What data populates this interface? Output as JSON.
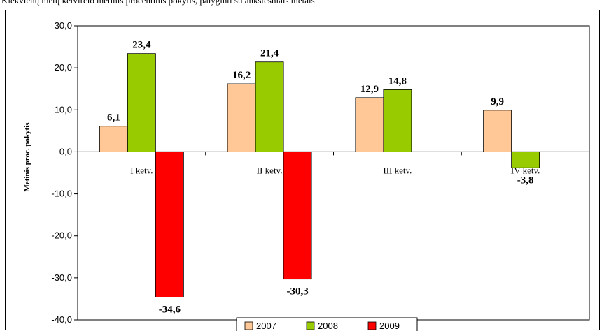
{
  "page": {
    "top_caption": "Kiekvienų metų ketvirčio metinis procentinis pokytis, palyginti su ankstesniais metais"
  },
  "chart_data": {
    "type": "bar",
    "categories": [
      "I ketv.",
      "II ketv.",
      "III ketv.",
      "IV ketv."
    ],
    "series": [
      {
        "name": "2007",
        "values": [
          6.1,
          16.2,
          12.9,
          9.9
        ],
        "labels": [
          "6,1",
          "16,2",
          "12,9",
          "9,9"
        ],
        "color": "#FFC896"
      },
      {
        "name": "2008",
        "values": [
          23.4,
          21.4,
          14.8,
          -3.8
        ],
        "labels": [
          "23,4",
          "21,4",
          "14,8",
          "-3,8"
        ],
        "color": "#99CC00"
      },
      {
        "name": "2009",
        "values": [
          -34.6,
          -30.3,
          null,
          null
        ],
        "labels": [
          "-34,6",
          "-30,3",
          "",
          ""
        ],
        "color": "#FF0000"
      }
    ],
    "ylabel": "Metinis proc. pokytis",
    "xlabel": "",
    "title": "",
    "ylim": [
      -40,
      30
    ],
    "yticks": [
      30,
      20,
      10,
      0,
      -10,
      -20,
      -30,
      -40
    ],
    "ytick_labels": [
      "30,0",
      "20,0",
      "10,0",
      "0,0",
      "-10,0",
      "-20,0",
      "-30,0",
      "-40,0"
    ],
    "grid": false,
    "legend_position": "bottom"
  }
}
